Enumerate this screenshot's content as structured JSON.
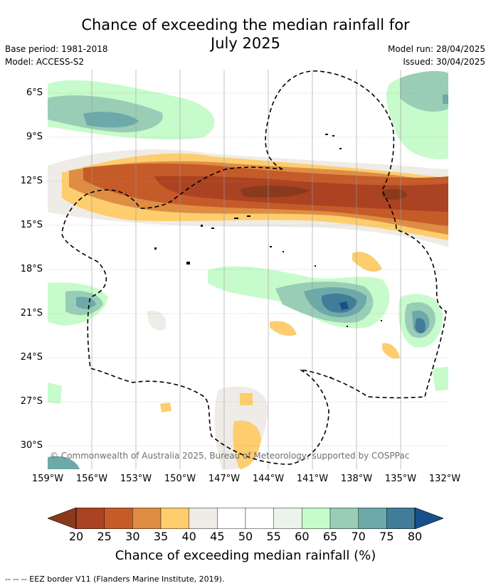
{
  "title_line1": "Chance of exceeding the median rainfall for",
  "title_line2": "July 2025",
  "base_period": "Base period: 1981-2018",
  "model": "Model: ACCESS-S2",
  "model_run": "Model run: 28/04/2025",
  "issued": "Issued: 30/04/2025",
  "copyright": "© Commonwealth of Australia 2025, Bureau of Meteorology, supported by COSPPac",
  "colorbar": {
    "title": "Chance of exceeding median rainfall (%)",
    "ticks": [
      "20",
      "25",
      "30",
      "35",
      "40",
      "45",
      "50",
      "55",
      "60",
      "65",
      "70",
      "75",
      "80"
    ],
    "colors": [
      "#ab4322",
      "#c65b2a",
      "#de8d43",
      "#fdcd6e",
      "#efebe6",
      "#ffffff",
      "#ffffff",
      "#ebf4eb",
      "#c7fbcb",
      "#99cdb5",
      "#6da9a9",
      "#417d98"
    ],
    "under_color": "#8a3a1c",
    "over_color": "#17508a"
  },
  "footer": "--  --  -- EEZ border V11 (Flanders Marine Institute, 2019).",
  "axes": {
    "lat_labels": [
      "6°S",
      "9°S",
      "12°S",
      "15°S",
      "18°S",
      "21°S",
      "24°S",
      "27°S",
      "30°S"
    ],
    "lon_labels": [
      "159°W",
      "156°W",
      "153°W",
      "150°W",
      "147°W",
      "144°W",
      "141°W",
      "138°W",
      "135°W",
      "132°W"
    ],
    "lon_range": [
      -159,
      -132
    ],
    "lat_range": [
      -31.5,
      -4.8
    ]
  }
}
